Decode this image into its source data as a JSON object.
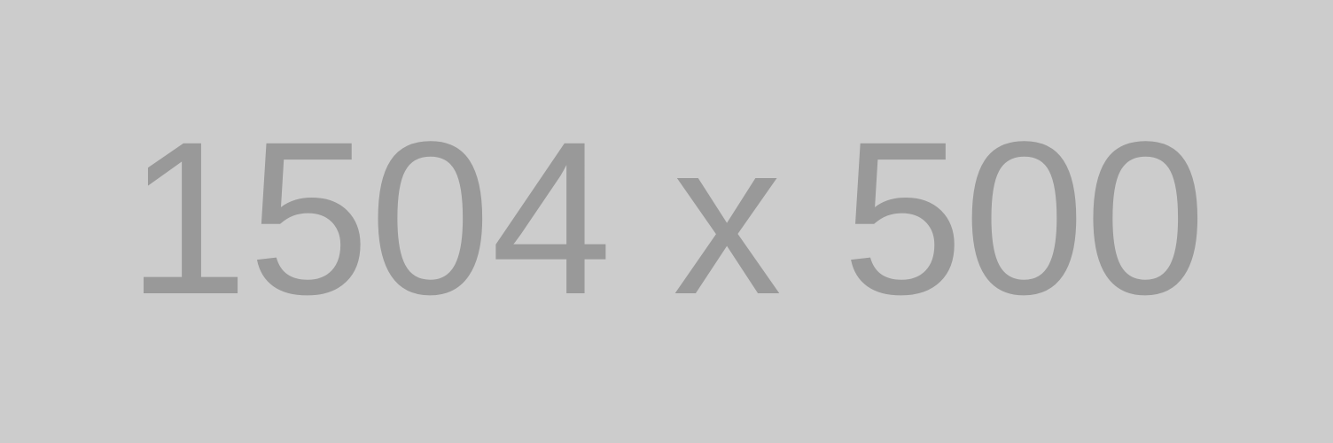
{
  "placeholder": {
    "label": "1504 x 500",
    "background_color": "#cccccc",
    "text_color": "#999999"
  }
}
